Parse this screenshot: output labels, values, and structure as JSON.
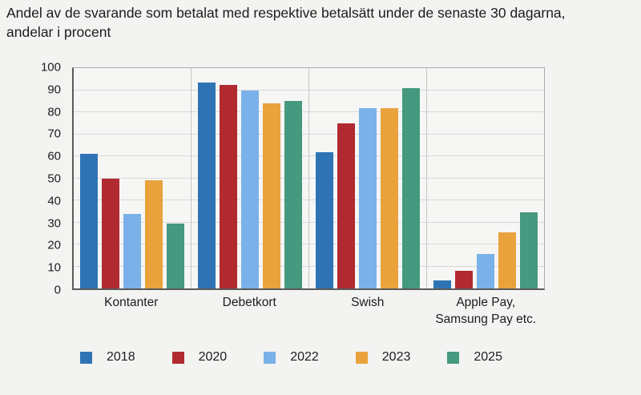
{
  "title": "Andel av de svarande som betalat med respektive betalsätt under de senaste 30 dagarna,\nandelar i procent",
  "colors": {
    "page_background": "#f3f3f1",
    "plot_background": "#f6f6f5",
    "gridline": "#d8d8d8",
    "category_separator": "#c6c6c6",
    "axis_line": "#5a5a5a",
    "text": "#1c1c1c"
  },
  "chart_data": {
    "type": "bar",
    "title": "Andel av de svarande som betalat med respektive betalsätt under de senaste 30 dagarna, andelar i procent",
    "categories": [
      "Kontanter",
      "Debetkort",
      "Swish",
      "Apple Pay,\nSamsung Pay etc."
    ],
    "series": [
      {
        "name": "2018",
        "color": "#2e74b5",
        "values": [
          61,
          93.5,
          62,
          3.5
        ]
      },
      {
        "name": "2020",
        "color": "#b02a30",
        "values": [
          50,
          92.5,
          75,
          8
        ]
      },
      {
        "name": "2022",
        "color": "#7ab1e8",
        "values": [
          34,
          90,
          82,
          15.5
        ]
      },
      {
        "name": "2023",
        "color": "#e9a23c",
        "values": [
          49,
          84,
          82,
          25.5
        ]
      },
      {
        "name": "2025",
        "color": "#44997f",
        "values": [
          29.5,
          85,
          91,
          34.5
        ]
      }
    ],
    "xlabel": "",
    "ylabel": "",
    "ylim": [
      0,
      100
    ],
    "ytick_step": 10,
    "grid": true,
    "legend_position": "bottom"
  }
}
